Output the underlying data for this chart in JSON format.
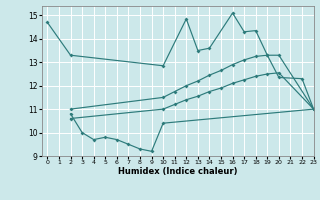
{
  "xlabel": "Humidex (Indice chaleur)",
  "xlim": [
    -0.5,
    23
  ],
  "ylim": [
    9,
    15.4
  ],
  "yticks": [
    9,
    10,
    11,
    12,
    13,
    14,
    15
  ],
  "xticks": [
    0,
    1,
    2,
    3,
    4,
    5,
    6,
    7,
    8,
    9,
    10,
    11,
    12,
    13,
    14,
    15,
    16,
    17,
    18,
    19,
    20,
    21,
    22,
    23
  ],
  "bg_color": "#cce8ea",
  "grid_color": "#ffffff",
  "line_color": "#2d7b7b",
  "series": [
    {
      "x": [
        0,
        2,
        10,
        12,
        13,
        14,
        16,
        17,
        18,
        19,
        20,
        22,
        23
      ],
      "y": [
        14.7,
        13.3,
        12.85,
        14.85,
        13.5,
        13.6,
        15.1,
        14.3,
        14.35,
        13.3,
        12.35,
        12.3,
        11.0
      ]
    },
    {
      "x": [
        2,
        3,
        4,
        5,
        6,
        7,
        8,
        9,
        10,
        23
      ],
      "y": [
        10.8,
        10.0,
        9.7,
        9.8,
        9.7,
        9.5,
        9.3,
        9.2,
        10.4,
        11.0
      ]
    },
    {
      "x": [
        2,
        10,
        11,
        12,
        13,
        14,
        15,
        16,
        17,
        18,
        19,
        20,
        23
      ],
      "y": [
        11.0,
        11.5,
        11.75,
        12.0,
        12.2,
        12.45,
        12.65,
        12.9,
        13.1,
        13.25,
        13.3,
        13.3,
        11.0
      ]
    },
    {
      "x": [
        2,
        10,
        11,
        12,
        13,
        14,
        15,
        16,
        17,
        18,
        19,
        20,
        23
      ],
      "y": [
        10.6,
        11.0,
        11.2,
        11.4,
        11.55,
        11.75,
        11.9,
        12.1,
        12.25,
        12.4,
        12.5,
        12.55,
        11.0
      ]
    }
  ]
}
